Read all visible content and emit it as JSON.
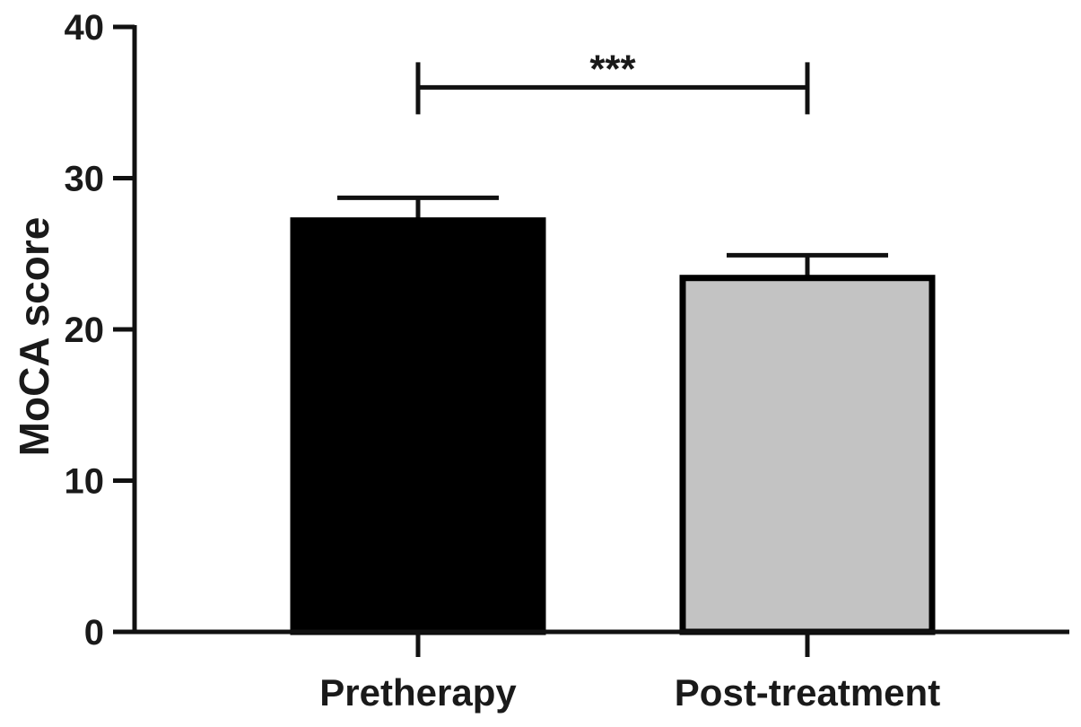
{
  "chart_data": {
    "type": "bar",
    "categories": [
      "Pretherapy",
      "Post-treatment"
    ],
    "values": [
      27.2,
      23.4
    ],
    "errors": [
      1.5,
      1.5
    ],
    "ylabel": "MoCA score",
    "xlabel": "",
    "ylim": [
      0,
      40
    ],
    "yticks": [
      0,
      10,
      20,
      30,
      40
    ],
    "bar_colors": [
      "#000000",
      "#c3c3c3"
    ],
    "bar_outline": "#000000",
    "significance": {
      "label": "***",
      "from": "Pretherapy",
      "to": "Post-treatment",
      "y": 36
    },
    "grid": false,
    "legend": "none"
  }
}
